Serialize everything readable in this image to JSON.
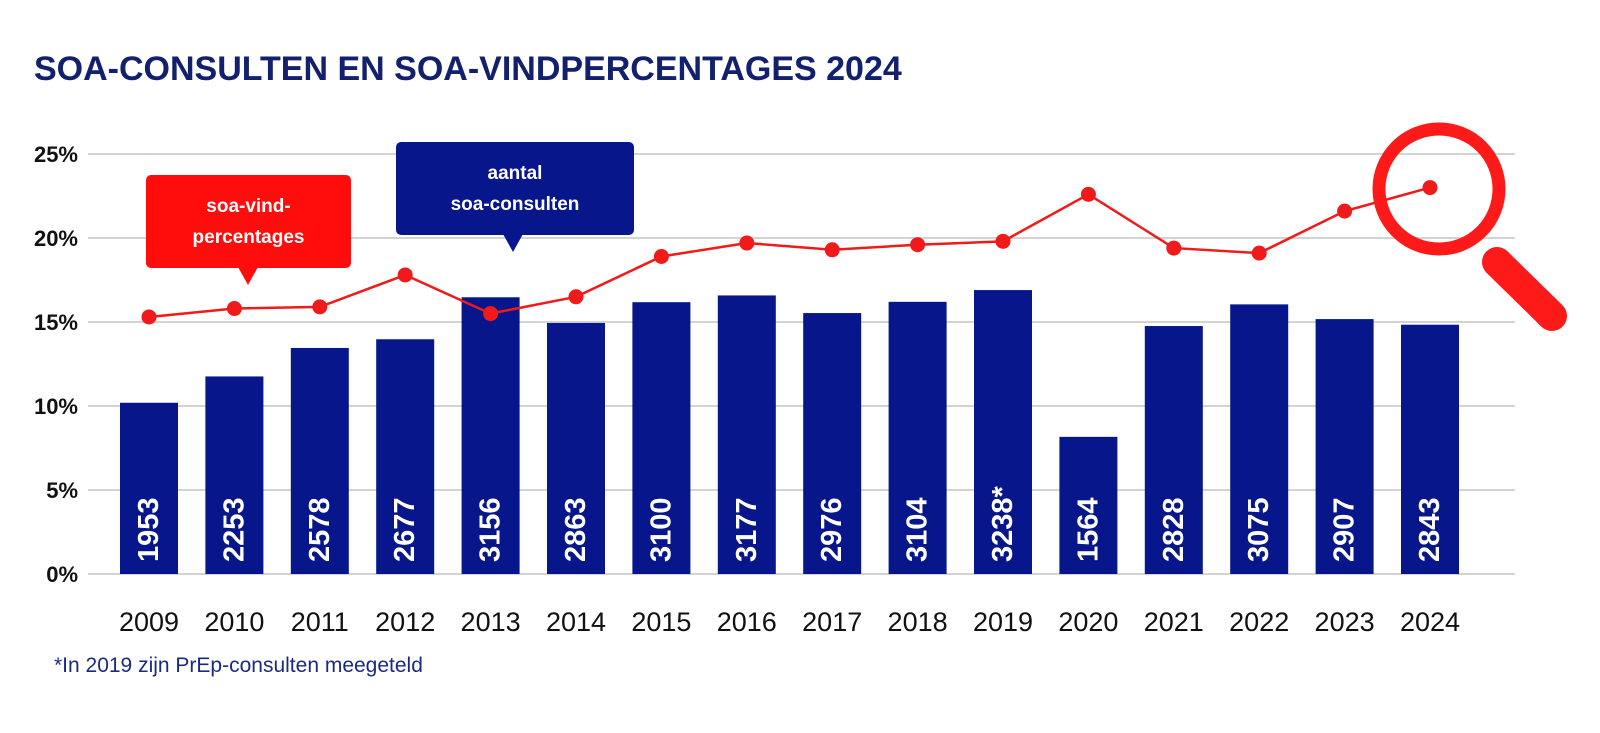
{
  "chart_data": {
    "type": "bar",
    "title": "SOA-CONSULTEN EN SOA-VINDPERCENTAGES 2024",
    "categories": [
      "2009",
      "2010",
      "2011",
      "2012",
      "2013",
      "2014",
      "2015",
      "2016",
      "2017",
      "2018",
      "2019",
      "2020",
      "2021",
      "2022",
      "2023",
      "2024"
    ],
    "series": [
      {
        "name": "aantal soa-consulten",
        "type": "bar",
        "values": [
          1953,
          2253,
          2578,
          2677,
          3156,
          2863,
          3100,
          3177,
          2976,
          3104,
          3238,
          1564,
          2828,
          3075,
          2907,
          2843
        ],
        "labels": [
          "1953",
          "2253",
          "2578",
          "2677",
          "3156",
          "2863",
          "3100",
          "3177",
          "2976",
          "3104",
          "3238*",
          "1564",
          "2828",
          "3075",
          "2907",
          "2843"
        ],
        "color": "#07168a"
      },
      {
        "name": "soa-vindpercentages",
        "type": "line",
        "values": [
          15.3,
          15.8,
          15.9,
          17.8,
          15.5,
          16.5,
          18.9,
          19.7,
          19.3,
          19.6,
          19.8,
          22.6,
          19.4,
          19.1,
          21.6,
          23.0
        ],
        "color": "#f01a1a"
      }
    ],
    "y_axis": {
      "min": 0,
      "max": 25,
      "ticks": [
        0,
        5,
        10,
        15,
        20,
        25
      ],
      "tick_labels": [
        "0%",
        "5%",
        "10%",
        "15%",
        "20%",
        "25%"
      ]
    },
    "grid": true
  },
  "callouts": {
    "rate": [
      "soa-vind-",
      "percentages"
    ],
    "count": [
      "aantal",
      "soa-consulten"
    ]
  },
  "footnote": "*In 2019 zijn PrEp-consulten meegeteld",
  "icons": {
    "magnifier": "magnifying-glass-icon"
  },
  "colors": {
    "title": "#12206e",
    "bar": "#07168a",
    "line": "#f01a1a",
    "grid": "#d3d3d3"
  }
}
